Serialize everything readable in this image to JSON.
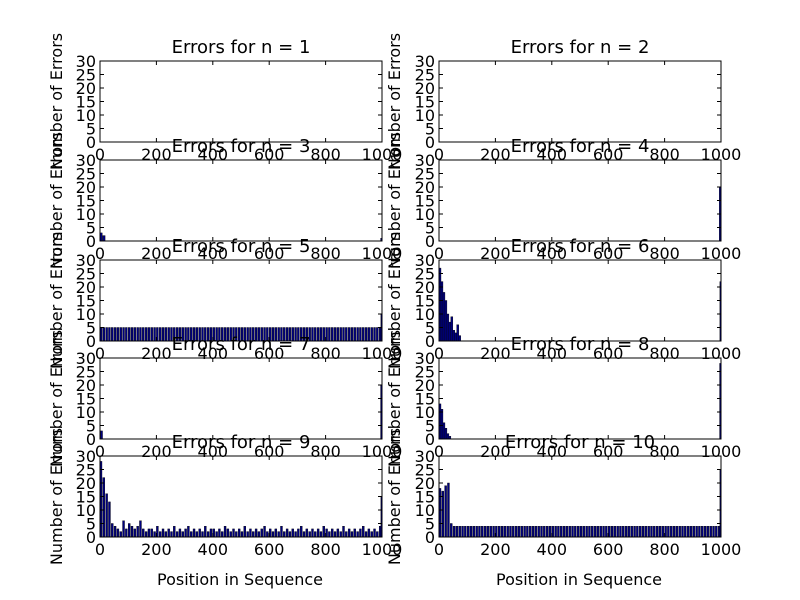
{
  "figure": {
    "xlabel": "Position in Sequence",
    "ylabel": "Number of Errors",
    "bar_color": "#00007f",
    "background": "#ffffff"
  },
  "chart_data": [
    {
      "type": "bar",
      "title": "Errors for n = 1",
      "xlim": [
        0,
        1000
      ],
      "ylim": [
        0,
        30
      ],
      "xticks": [
        0,
        200,
        400,
        600,
        800,
        1000
      ],
      "yticks": [
        0,
        5,
        10,
        15,
        20,
        25,
        30
      ],
      "xticklabels": [
        "0",
        "200",
        "400",
        "600",
        "800",
        "1000"
      ],
      "yticklabels": [
        "0",
        "5",
        "10",
        "15",
        "20",
        "25",
        "30"
      ],
      "bar_width": 5,
      "x": [],
      "values": []
    },
    {
      "type": "bar",
      "title": "Errors for n = 2",
      "xlim": [
        0,
        1000
      ],
      "ylim": [
        0,
        30
      ],
      "xticks": [
        0,
        200,
        400,
        600,
        800,
        1000
      ],
      "yticks": [
        0,
        5,
        10,
        15,
        20,
        25,
        30
      ],
      "xticklabels": [
        "0",
        "200",
        "400",
        "600",
        "800",
        "1000"
      ],
      "yticklabels": [
        "0",
        "5",
        "10",
        "15",
        "20",
        "25",
        "30"
      ],
      "bar_width": 5,
      "x": [],
      "values": []
    },
    {
      "type": "bar",
      "title": "Errors for n = 3",
      "xlim": [
        0,
        1000
      ],
      "ylim": [
        0,
        30
      ],
      "xticks": [
        0,
        200,
        400,
        600,
        800,
        1000
      ],
      "yticks": [
        0,
        5,
        10,
        15,
        20,
        25,
        30
      ],
      "xticklabels": [
        "0",
        "200",
        "400",
        "600",
        "800",
        "1000"
      ],
      "yticklabels": [
        "0",
        "5",
        "10",
        "15",
        "20",
        "25",
        "30"
      ],
      "bar_width": 8,
      "x": [
        0,
        10,
        995
      ],
      "values": [
        3,
        2,
        1
      ]
    },
    {
      "type": "bar",
      "title": "Errors for n = 4",
      "xlim": [
        0,
        1000
      ],
      "ylim": [
        0,
        30
      ],
      "xticks": [
        0,
        200,
        400,
        600,
        800,
        1000
      ],
      "yticks": [
        0,
        5,
        10,
        15,
        20,
        25,
        30
      ],
      "xticklabels": [
        "0",
        "200",
        "400",
        "600",
        "800",
        "1000"
      ],
      "yticklabels": [
        "0",
        "5",
        "10",
        "15",
        "20",
        "25",
        "30"
      ],
      "bar_width": 6,
      "x": [
        994
      ],
      "values": [
        20
      ]
    },
    {
      "type": "bar",
      "title": "Errors for n = 5",
      "xlim": [
        0,
        1000
      ],
      "ylim": [
        0,
        30
      ],
      "xticks": [
        0,
        200,
        400,
        600,
        800,
        1000
      ],
      "yticks": [
        0,
        5,
        10,
        15,
        20,
        25,
        30
      ],
      "xticklabels": [
        "0",
        "200",
        "400",
        "600",
        "800",
        "1000"
      ],
      "yticklabels": [
        "0",
        "5",
        "10",
        "15",
        "20",
        "25",
        "30"
      ],
      "bar_width": 7,
      "x": [
        0,
        10,
        20,
        30,
        40,
        50,
        60,
        70,
        80,
        90,
        100,
        110,
        120,
        130,
        140,
        150,
        160,
        170,
        180,
        190,
        200,
        210,
        220,
        230,
        240,
        250,
        260,
        270,
        280,
        290,
        300,
        310,
        320,
        330,
        340,
        350,
        360,
        370,
        380,
        390,
        400,
        410,
        420,
        430,
        440,
        450,
        460,
        470,
        480,
        490,
        500,
        510,
        520,
        530,
        540,
        550,
        560,
        570,
        580,
        590,
        600,
        610,
        620,
        630,
        640,
        650,
        660,
        670,
        680,
        690,
        700,
        710,
        720,
        730,
        740,
        750,
        760,
        770,
        780,
        790,
        800,
        810,
        820,
        830,
        840,
        850,
        860,
        870,
        880,
        890,
        900,
        910,
        920,
        930,
        940,
        950,
        960,
        970,
        980,
        990,
        996
      ],
      "values": [
        5,
        5,
        5,
        5,
        5,
        5,
        5,
        5,
        5,
        5,
        5,
        5,
        5,
        5,
        5,
        5,
        5,
        5,
        5,
        5,
        5,
        5,
        5,
        5,
        5,
        5,
        5,
        5,
        5,
        5,
        5,
        5,
        5,
        5,
        5,
        5,
        5,
        5,
        5,
        5,
        5,
        5,
        5,
        5,
        5,
        5,
        5,
        5,
        5,
        5,
        5,
        5,
        5,
        5,
        5,
        5,
        5,
        5,
        5,
        5,
        5,
        5,
        5,
        5,
        5,
        5,
        5,
        5,
        5,
        5,
        5,
        5,
        5,
        5,
        5,
        5,
        5,
        5,
        5,
        5,
        5,
        5,
        5,
        5,
        5,
        5,
        5,
        5,
        5,
        5,
        5,
        5,
        5,
        5,
        5,
        5,
        5,
        5,
        5,
        5,
        10
      ]
    },
    {
      "type": "bar",
      "title": "Errors for n = 6",
      "xlim": [
        0,
        1000
      ],
      "ylim": [
        0,
        30
      ],
      "xticks": [
        0,
        200,
        400,
        600,
        800,
        1000
      ],
      "yticks": [
        0,
        5,
        10,
        15,
        20,
        25,
        30
      ],
      "xticklabels": [
        "0",
        "200",
        "400",
        "600",
        "800",
        "1000"
      ],
      "yticklabels": [
        "0",
        "5",
        "10",
        "15",
        "20",
        "25",
        "30"
      ],
      "bar_width": 7,
      "x": [
        0,
        7,
        14,
        21,
        28,
        35,
        42,
        49,
        56,
        63,
        70,
        996
      ],
      "values": [
        27,
        22,
        18,
        15,
        10,
        7,
        9,
        4,
        3,
        6,
        2,
        22
      ]
    },
    {
      "type": "bar",
      "title": "Errors for n = 7",
      "xlim": [
        0,
        1000
      ],
      "ylim": [
        0,
        30
      ],
      "xticks": [
        0,
        200,
        400,
        600,
        800,
        1000
      ],
      "yticks": [
        0,
        5,
        10,
        15,
        20,
        25,
        30
      ],
      "xticklabels": [
        "0",
        "200",
        "400",
        "600",
        "800",
        "1000"
      ],
      "yticklabels": [
        "0",
        "5",
        "10",
        "15",
        "20",
        "25",
        "30"
      ],
      "bar_width": 7,
      "x": [
        2,
        995
      ],
      "values": [
        3,
        20
      ]
    },
    {
      "type": "bar",
      "title": "Errors for n = 8",
      "xlim": [
        0,
        1000
      ],
      "ylim": [
        0,
        30
      ],
      "xticks": [
        0,
        200,
        400,
        600,
        800,
        1000
      ],
      "yticks": [
        0,
        5,
        10,
        15,
        20,
        25,
        30
      ],
      "xticklabels": [
        "0",
        "200",
        "400",
        "600",
        "800",
        "1000"
      ],
      "yticklabels": [
        "0",
        "5",
        "10",
        "15",
        "20",
        "25",
        "30"
      ],
      "bar_width": 7,
      "x": [
        0,
        7,
        14,
        21,
        28,
        35,
        995
      ],
      "values": [
        13,
        11,
        6,
        4,
        2,
        1,
        28
      ]
    },
    {
      "type": "bar",
      "title": "Errors for n = 9",
      "xlim": [
        0,
        1000
      ],
      "ylim": [
        0,
        30
      ],
      "xticks": [
        0,
        200,
        400,
        600,
        800,
        1000
      ],
      "yticks": [
        0,
        5,
        10,
        15,
        20,
        25,
        30
      ],
      "xticklabels": [
        "0",
        "200",
        "400",
        "600",
        "800",
        "1000"
      ],
      "yticklabels": [
        "0",
        "5",
        "10",
        "15",
        "20",
        "25",
        "30"
      ],
      "bar_width": 7,
      "x": [
        0,
        10,
        20,
        30,
        40,
        50,
        60,
        70,
        80,
        90,
        100,
        110,
        120,
        130,
        140,
        150,
        160,
        170,
        180,
        190,
        200,
        210,
        220,
        230,
        240,
        250,
        260,
        270,
        280,
        290,
        300,
        310,
        320,
        330,
        340,
        350,
        360,
        370,
        380,
        390,
        400,
        410,
        420,
        430,
        440,
        450,
        460,
        470,
        480,
        490,
        500,
        510,
        520,
        530,
        540,
        550,
        560,
        570,
        580,
        590,
        600,
        610,
        620,
        630,
        640,
        650,
        660,
        670,
        680,
        690,
        700,
        710,
        720,
        730,
        740,
        750,
        760,
        770,
        780,
        790,
        800,
        810,
        820,
        830,
        840,
        850,
        860,
        870,
        880,
        890,
        900,
        910,
        920,
        930,
        940,
        950,
        960,
        970,
        980,
        990,
        996
      ],
      "values": [
        28,
        22,
        16,
        13,
        5,
        4,
        3,
        2,
        6,
        3,
        5,
        4,
        3,
        4,
        6,
        3,
        2,
        3,
        3,
        2,
        4,
        2,
        3,
        2,
        3,
        2,
        4,
        2,
        3,
        2,
        3,
        4,
        2,
        3,
        2,
        3,
        2,
        4,
        2,
        3,
        3,
        2,
        3,
        2,
        4,
        3,
        2,
        3,
        2,
        3,
        2,
        4,
        2,
        3,
        2,
        3,
        2,
        3,
        4,
        2,
        3,
        2,
        3,
        2,
        4,
        2,
        3,
        2,
        3,
        2,
        3,
        4,
        2,
        3,
        2,
        3,
        2,
        3,
        2,
        4,
        3,
        2,
        3,
        2,
        3,
        2,
        4,
        2,
        3,
        2,
        3,
        2,
        3,
        4,
        2,
        3,
        2,
        3,
        2,
        4,
        15
      ]
    },
    {
      "type": "bar",
      "title": "Errors for n = 10",
      "xlim": [
        0,
        1000
      ],
      "ylim": [
        0,
        30
      ],
      "xticks": [
        0,
        200,
        400,
        600,
        800,
        1000
      ],
      "yticks": [
        0,
        5,
        10,
        15,
        20,
        25,
        30
      ],
      "xticklabels": [
        "0",
        "200",
        "400",
        "600",
        "800",
        "1000"
      ],
      "yticklabels": [
        "0",
        "5",
        "10",
        "15",
        "20",
        "25",
        "30"
      ],
      "bar_width": 7,
      "x": [
        0,
        10,
        20,
        30,
        40,
        50,
        60,
        70,
        80,
        90,
        100,
        110,
        120,
        130,
        140,
        150,
        160,
        170,
        180,
        190,
        200,
        210,
        220,
        230,
        240,
        250,
        260,
        270,
        280,
        290,
        300,
        310,
        320,
        330,
        340,
        350,
        360,
        370,
        380,
        390,
        400,
        410,
        420,
        430,
        440,
        450,
        460,
        470,
        480,
        490,
        500,
        510,
        520,
        530,
        540,
        550,
        560,
        570,
        580,
        590,
        600,
        610,
        620,
        630,
        640,
        650,
        660,
        670,
        680,
        690,
        700,
        710,
        720,
        730,
        740,
        750,
        760,
        770,
        780,
        790,
        800,
        810,
        820,
        830,
        840,
        850,
        860,
        870,
        880,
        890,
        900,
        910,
        920,
        930,
        940,
        950,
        960,
        970,
        980,
        990,
        996
      ],
      "values": [
        18,
        17,
        19,
        20,
        5,
        4,
        4,
        4,
        4,
        4,
        4,
        4,
        4,
        4,
        4,
        4,
        4,
        4,
        4,
        4,
        4,
        4,
        4,
        4,
        4,
        4,
        4,
        4,
        4,
        4,
        4,
        4,
        4,
        4,
        4,
        4,
        4,
        4,
        4,
        4,
        4,
        4,
        4,
        4,
        4,
        4,
        4,
        4,
        4,
        4,
        4,
        4,
        4,
        4,
        4,
        4,
        4,
        4,
        4,
        4,
        4,
        4,
        4,
        4,
        4,
        4,
        4,
        4,
        4,
        4,
        4,
        4,
        4,
        4,
        4,
        4,
        4,
        4,
        4,
        4,
        4,
        4,
        4,
        4,
        4,
        4,
        4,
        4,
        4,
        4,
        4,
        4,
        4,
        4,
        4,
        4,
        4,
        4,
        4,
        4,
        25
      ]
    }
  ]
}
